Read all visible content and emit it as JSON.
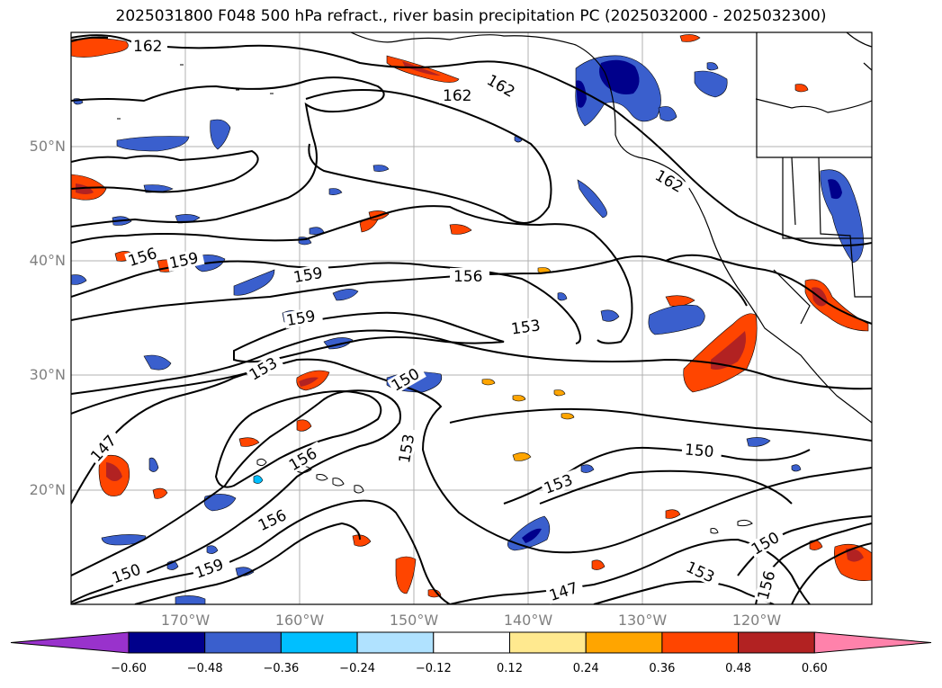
{
  "title": "2025031800 F048 500 hPa refract., river basin precipitation PC (2025032000 - 2025032300)",
  "lat_labels": [
    "50°N",
    "40°N",
    "30°N",
    "20°N"
  ],
  "lon_labels": [
    "170°W",
    "160°W",
    "150°W",
    "140°W",
    "130°W",
    "120°W"
  ],
  "contour_labels": [
    "162",
    "162",
    "162",
    "162",
    "156",
    "159",
    "159",
    "156",
    "159",
    "153",
    "153",
    "150",
    "147",
    "156",
    "153",
    "150",
    "153",
    "156",
    "150",
    "159",
    "150",
    "153",
    "156",
    "147"
  ],
  "colorbar": {
    "ticks": [
      "−0.60",
      "−0.48",
      "−0.36",
      "−0.24",
      "−0.12",
      "0.12",
      "0.24",
      "0.36",
      "0.48",
      "0.60"
    ],
    "colors": [
      "#9932cc",
      "#00008b",
      "#3a5fcd",
      "#00bfff",
      "#b0e2ff",
      "#ffffff",
      "#ffe98f",
      "#ffa500",
      "#ff4500",
      "#b22222",
      "#ff82ab"
    ],
    "extend": "both"
  },
  "colors": {
    "strong_negative": "#00008b",
    "negative": "#3a5fcd",
    "weak_negative": "#00bfff",
    "positive": "#ff4500",
    "strong_positive": "#b22222",
    "weak_positive": "#ffa500"
  }
}
